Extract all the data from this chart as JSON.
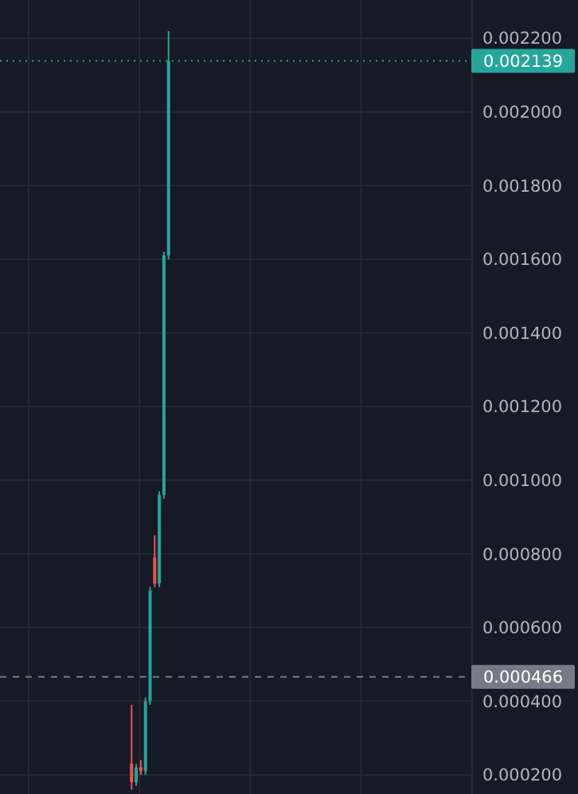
{
  "chart_data": {
    "type": "candlestick",
    "categories": [
      null,
      null,
      null,
      null,
      null,
      null,
      null,
      null,
      null,
      null,
      null,
      null,
      null,
      null,
      null,
      null,
      null,
      null,
      null,
      null,
      null,
      null,
      null,
      null,
      null,
      null,
      null,
      null,
      null,
      null,
      null,
      null,
      null,
      null,
      null,
      null,
      null,
      null,
      null,
      null,
      null,
      null,
      null,
      null,
      null,
      null,
      null,
      null,
      null,
      null,
      null,
      null,
      null,
      null,
      null,
      null,
      null,
      null,
      null,
      null,
      null,
      null,
      null,
      null,
      null,
      null,
      null,
      null,
      null,
      null,
      null,
      null,
      null,
      null,
      null,
      null,
      null,
      null,
      null,
      null,
      null,
      null,
      null,
      null,
      null,
      null,
      null,
      null,
      null,
      null,
      null,
      null,
      null,
      null,
      null,
      null,
      null,
      null,
      null,
      null
    ],
    "ohlc": [
      null,
      null,
      null,
      null,
      null,
      null,
      null,
      null,
      null,
      null,
      null,
      null,
      null,
      null,
      null,
      null,
      null,
      null,
      null,
      null,
      null,
      null,
      null,
      null,
      null,
      null,
      null,
      null,
      [
        0.00023,
        0.00039,
        0.00016,
        0.00018
      ],
      [
        0.00018,
        0.00023,
        0.00017,
        0.00022
      ],
      [
        0.00022,
        0.00024,
        0.0002,
        0.00021
      ],
      [
        0.00021,
        0.00041,
        0.0002,
        0.0004
      ],
      [
        0.0004,
        0.00071,
        0.00039,
        0.0007
      ],
      [
        0.00079,
        0.00085,
        0.00071,
        0.00072
      ],
      [
        0.00072,
        0.00097,
        0.00071,
        0.00096
      ],
      [
        0.00096,
        0.00162,
        0.00095,
        0.00161
      ],
      [
        0.00161,
        0.00222,
        0.0016,
        0.002139
      ],
      null,
      null,
      null,
      null,
      null,
      null,
      null,
      null,
      null,
      null,
      null,
      null,
      null,
      null,
      null,
      null,
      null,
      null,
      null,
      null,
      null,
      null,
      null,
      null,
      null,
      null,
      null,
      null,
      null,
      null,
      null,
      null,
      null,
      null,
      null,
      null,
      null,
      null,
      null,
      null,
      null,
      null,
      null,
      null,
      null,
      null,
      null,
      null,
      null,
      null,
      null,
      null,
      null,
      null,
      null,
      null,
      null,
      null,
      null,
      null,
      null,
      null,
      null
    ],
    "colors": [
      null,
      null,
      null,
      null,
      null,
      null,
      null,
      null,
      null,
      null,
      null,
      null,
      null,
      null,
      null,
      null,
      null,
      null,
      null,
      null,
      null,
      null,
      null,
      null,
      null,
      null,
      null,
      null,
      "#ef5350",
      "#26a69a",
      "#ef5350",
      "#26a69a",
      "#26a69a",
      "#ef5350",
      "#26a69a",
      "#26a69a",
      "#26a69a",
      null,
      null,
      null,
      null,
      null,
      null,
      null,
      null,
      null,
      null,
      null,
      null,
      null,
      null,
      null,
      null,
      null,
      null,
      null,
      null,
      null,
      null,
      null,
      null,
      null,
      null,
      null,
      null,
      null,
      null,
      null,
      null,
      null,
      null,
      null,
      null,
      null,
      null,
      null,
      null,
      null,
      null,
      null,
      null,
      null,
      null,
      null,
      null,
      null,
      null,
      null,
      null,
      null,
      null,
      null,
      null,
      null,
      null,
      null,
      null,
      null,
      null,
      null
    ],
    "ylim": [
      0.000148,
      0.002304
    ],
    "yticks": [
      {
        "value": 0.0002,
        "label": "0.000200"
      },
      {
        "value": 0.0004,
        "label": "0.000400"
      },
      {
        "value": 0.0006,
        "label": "0.000600"
      },
      {
        "value": 0.0008,
        "label": "0.000800"
      },
      {
        "value": 0.001,
        "label": "0.001000"
      },
      {
        "value": 0.0012,
        "label": "0.001200"
      },
      {
        "value": 0.0014,
        "label": "0.001400"
      },
      {
        "value": 0.0016,
        "label": "0.001600"
      },
      {
        "value": 0.0018,
        "label": "0.001800"
      },
      {
        "value": 0.002,
        "label": "0.002000"
      },
      {
        "value": 0.0022,
        "label": "0.002200"
      }
    ],
    "ref_lines": [
      {
        "axis": "y",
        "value": 0.002139,
        "label": "0.002139",
        "color": "#26a69a",
        "line_style": "dotted"
      },
      {
        "axis": "y",
        "value": 0.000466,
        "label": "0.000466",
        "color": "#787b86",
        "line_style": "dashed"
      }
    ],
    "grid": true,
    "tick_labels": "y"
  }
}
